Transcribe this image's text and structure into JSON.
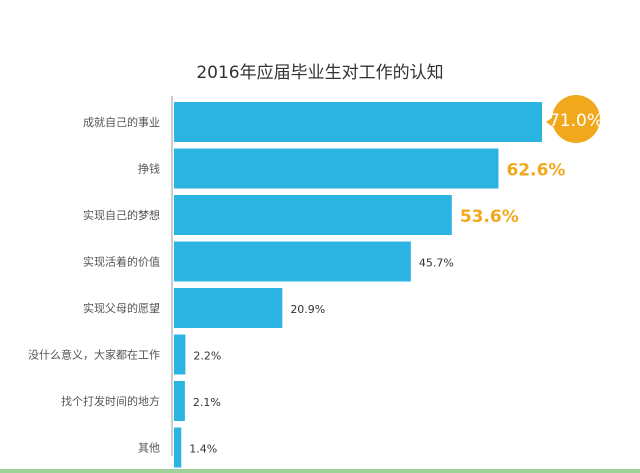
{
  "chart_data": {
    "type": "bar",
    "orientation": "horizontal",
    "title": "2016年应届毕业生对工作的认知",
    "categories": [
      "成就自己的事业",
      "挣钱",
      "实现自己的梦想",
      "实现活着的价值",
      "实现父母的愿望",
      "没什么意义，大家都在工作",
      "找个打发时间的地方",
      "其他"
    ],
    "values": [
      71.0,
      62.6,
      53.6,
      45.7,
      20.9,
      2.2,
      2.1,
      1.4
    ],
    "value_labels": [
      "71.0%",
      "62.6%",
      "53.6%",
      "45.7%",
      "20.9%",
      "2.2%",
      "2.1%",
      "1.4%"
    ],
    "xlim": [
      0,
      71.0
    ],
    "grid": false,
    "legend": "none",
    "colors": {
      "bar": "#2bb4e2",
      "highlight_label": "#f2a81d",
      "default_label": "#333333",
      "category_label": "#555555",
      "title": "#333333",
      "axis": "#9a9a9a",
      "bottom_rule": "#9fd19a"
    },
    "highlighted_indices": [
      0,
      1,
      2
    ],
    "bubble_index": 0
  }
}
